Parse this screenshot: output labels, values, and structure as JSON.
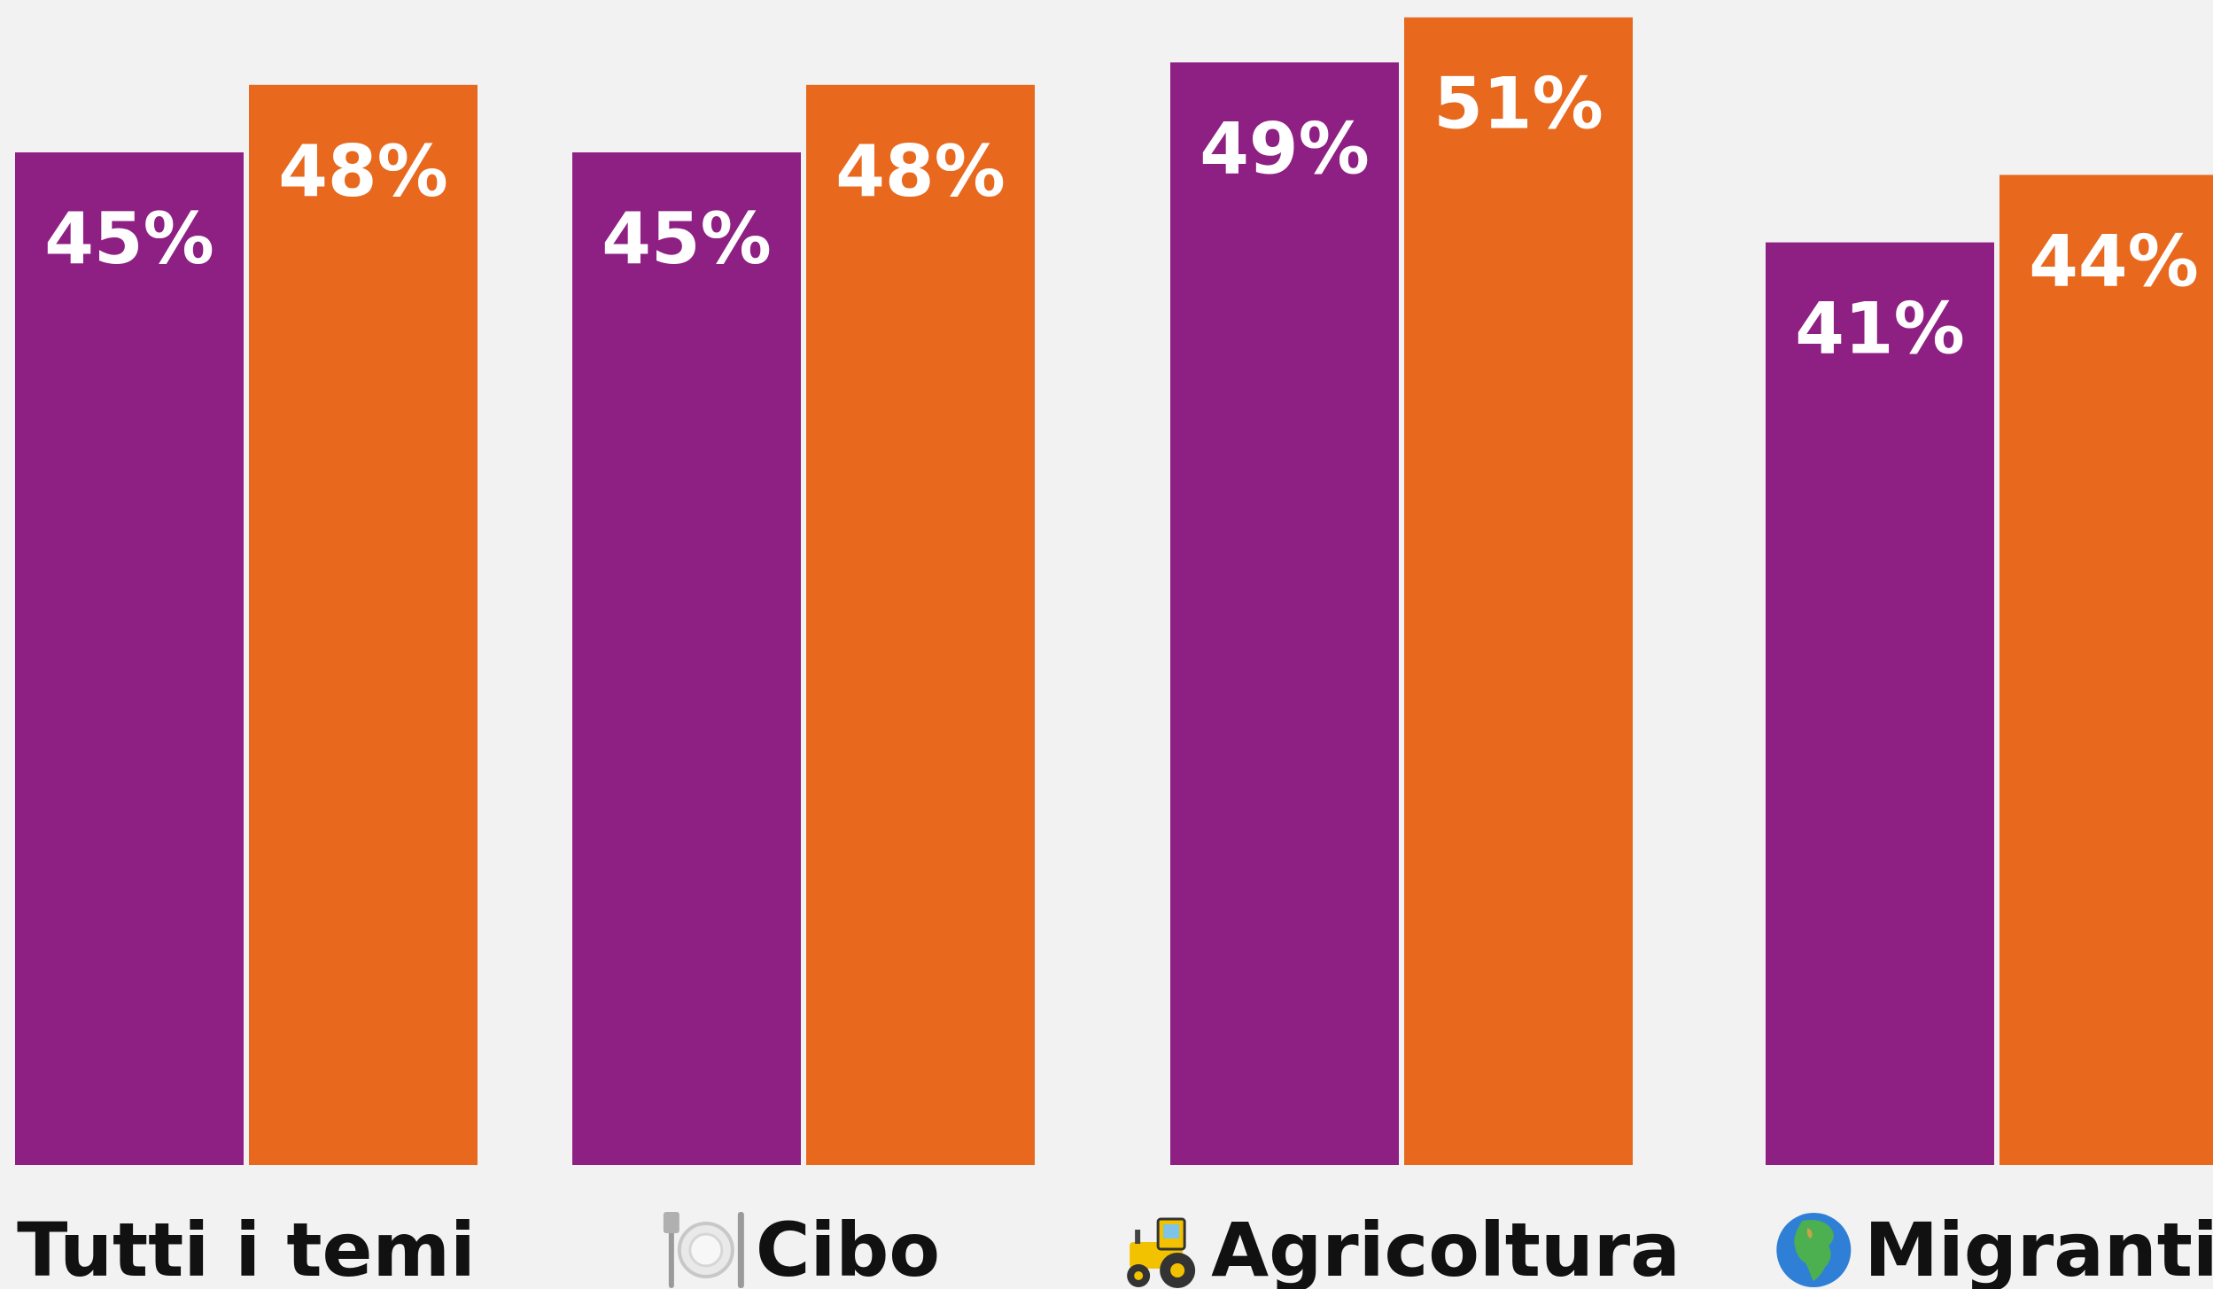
{
  "colors": {
    "background": "#f2f2f2",
    "series_1": "#8e1f83",
    "series_2": "#e8681e",
    "bar_label": "#ffffff",
    "category_label": "#111111"
  },
  "chart_data": {
    "type": "bar",
    "categories": [
      "Tutti i temi",
      "Cibo",
      "Agricoltura",
      "Migranti"
    ],
    "category_icons": [
      null,
      "fork-and-knife-with-plate-icon",
      "tractor-icon",
      "globe-africa-icon"
    ],
    "series": [
      {
        "values": [
          45,
          45,
          49,
          41
        ],
        "labels": [
          "45%",
          "45%",
          "49%",
          "41%"
        ]
      },
      {
        "values": [
          48,
          48,
          51,
          44
        ],
        "labels": [
          "48%",
          "48%",
          "51%",
          "44%"
        ]
      }
    ],
    "ylim": [
      0,
      52
    ],
    "grid": false,
    "legend": "none"
  }
}
